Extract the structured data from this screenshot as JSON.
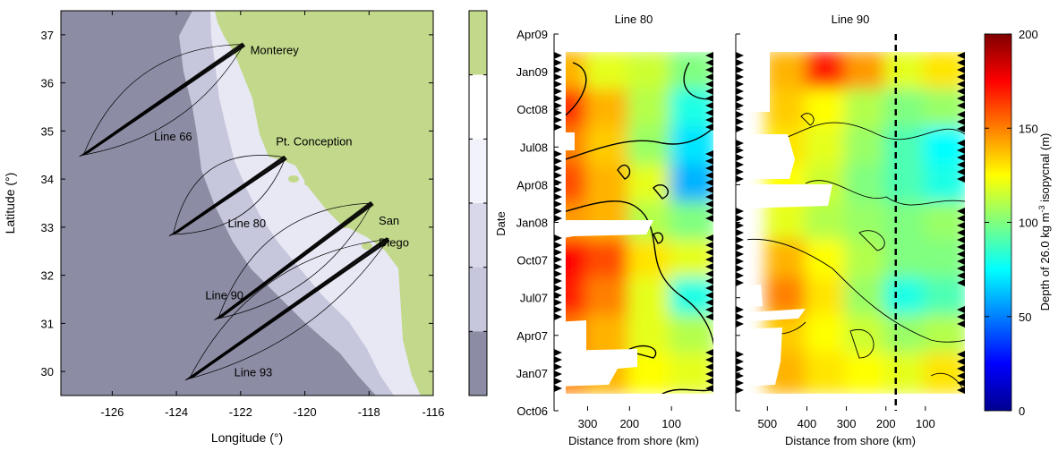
{
  "map": {
    "xlabel": "Longitude (°)",
    "ylabel": "Latitude (°)",
    "xticks": [
      -126,
      -124,
      -122,
      -120,
      -118,
      -116
    ],
    "yticks": [
      30,
      31,
      32,
      33,
      34,
      35,
      36,
      37
    ],
    "xlim": [
      -127.6,
      -116
    ],
    "ylim": [
      29.5,
      37.5
    ],
    "labels": [
      {
        "text": "Monterey",
        "lon": -121.7,
        "lat": 36.6
      },
      {
        "text": "Pt. Conception",
        "lon": -120.9,
        "lat": 34.7
      },
      {
        "text": "San",
        "lon": -117.7,
        "lat": 33.05
      },
      {
        "text": "Diego",
        "lon": -117.7,
        "lat": 32.6
      },
      {
        "text": "Line 66",
        "lon": -124.7,
        "lat": 34.8
      },
      {
        "text": "Line 80",
        "lon": -122.4,
        "lat": 33.0
      },
      {
        "text": "Line 90",
        "lon": -123.1,
        "lat": 31.5
      },
      {
        "text": "Line 93",
        "lon": -122.2,
        "lat": 29.9
      }
    ],
    "tracks": [
      {
        "start": [
          -126.9,
          34.5
        ],
        "end": [
          -121.9,
          36.8
        ]
      },
      {
        "start": [
          -124.1,
          32.85
        ],
        "end": [
          -120.6,
          34.45
        ]
      },
      {
        "start": [
          -122.7,
          31.1
        ],
        "end": [
          -117.9,
          33.5
        ]
      },
      {
        "start": [
          -123.6,
          29.85
        ],
        "end": [
          -117.4,
          32.75
        ]
      }
    ],
    "colors": {
      "ocean_deep": "#8c8ca4",
      "ocean_mid": "#c6c6dc",
      "ocean_shallow": "#e8e8f4",
      "land": "#c2d98c",
      "track": "#000000"
    }
  },
  "colorbar_left": {
    "colors": [
      "#c2d98c",
      "#ffffff",
      "#f2f2fa",
      "#d8d8ea",
      "#c6c6dc",
      "#8c8ca4"
    ]
  },
  "sections": {
    "ylabel": "Date",
    "xlabel": "Distance from shore (km)",
    "dates": [
      "Apr09",
      "Jan09",
      "Oct08",
      "Jul08",
      "Apr08",
      "Jan08",
      "Oct07",
      "Jul07",
      "Apr07",
      "Jan07",
      "Oct06"
    ],
    "panels": [
      {
        "title": "Line 80",
        "xticks": [
          300,
          200,
          100
        ],
        "xlim": [
          380,
          0
        ]
      },
      {
        "title": "Line 90",
        "xticks": [
          500,
          400,
          300,
          200,
          100
        ],
        "xlim": [
          580,
          0
        ],
        "dashed_line_km": 175
      }
    ]
  },
  "colorbar_right": {
    "label": "Depth of 26.0 kg m-3 isopycnal (m)",
    "label_main": "Depth of 26.0 kg m",
    "label_sup": "-3",
    "label_end": " isopycnal (m)",
    "ticks": [
      0,
      50,
      100,
      150,
      200
    ],
    "range": [
      0,
      200
    ]
  },
  "chart_data": [
    {
      "type": "heatmap",
      "title": "Line 80",
      "xlabel": "Distance from shore (km)",
      "ylabel": "Date",
      "x": [
        350,
        250,
        150,
        50
      ],
      "y": [
        "Jan09",
        "Oct08",
        "Jul08",
        "Apr08",
        "Jan08",
        "Oct07",
        "Jul07",
        "Apr07",
        "Jan07"
      ],
      "z": [
        [
          140,
          120,
          115,
          100
        ],
        [
          165,
          140,
          110,
          80
        ],
        [
          150,
          135,
          105,
          70
        ],
        [
          160,
          140,
          120,
          60
        ],
        [
          145,
          140,
          110,
          100
        ],
        [
          175,
          160,
          130,
          120
        ],
        [
          170,
          150,
          120,
          80
        ],
        [
          150,
          140,
          120,
          110
        ],
        [
          150,
          140,
          125,
          120
        ]
      ],
      "zlim": [
        0,
        200
      ]
    },
    {
      "type": "heatmap",
      "title": "Line 90",
      "xlabel": "Distance from shore (km)",
      "ylabel": "Date",
      "x": [
        450,
        350,
        250,
        150,
        50
      ],
      "y": [
        "Jan09",
        "Oct08",
        "Jul08",
        "Apr08",
        "Jan08",
        "Oct07",
        "Jul07",
        "Apr07",
        "Jan07"
      ],
      "z": [
        [
          140,
          170,
          145,
          120,
          130
        ],
        [
          135,
          125,
          110,
          100,
          105
        ],
        [
          130,
          120,
          105,
          90,
          75
        ],
        [
          125,
          115,
          100,
          90,
          80
        ],
        [
          120,
          110,
          105,
          100,
          105
        ],
        [
          140,
          125,
          110,
          100,
          100
        ],
        [
          150,
          130,
          105,
          80,
          90
        ],
        [
          135,
          125,
          115,
          105,
          110
        ],
        [
          140,
          130,
          125,
          120,
          130
        ]
      ],
      "zlim": [
        0,
        200
      ]
    }
  ]
}
